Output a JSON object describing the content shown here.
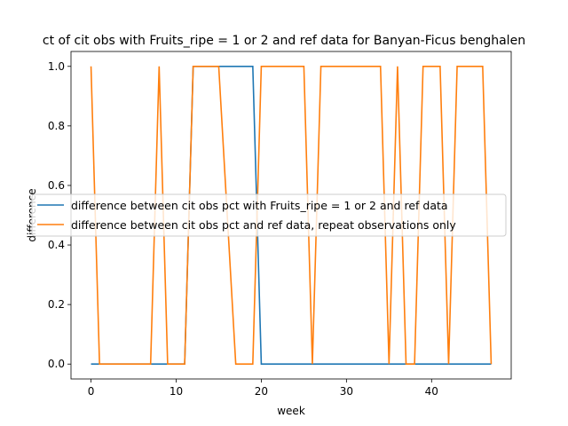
{
  "chart_data": {
    "type": "line",
    "title": "ct of cit obs with Fruits_ripe = 1 or 2 and ref data for Banyan-Ficus benghalen",
    "xlabel": "week",
    "ylabel": "difference",
    "xlim": [
      -2.35,
      49.35
    ],
    "ylim": [
      -0.05,
      1.05
    ],
    "xticks": [
      0,
      10,
      20,
      30,
      40
    ],
    "yticks": [
      0.0,
      0.2,
      0.4,
      0.6,
      0.8,
      1.0
    ],
    "xtick_labels": [
      "0",
      "10",
      "20",
      "30",
      "40"
    ],
    "ytick_labels": [
      "0.0",
      "0.2",
      "0.4",
      "0.6",
      "0.8",
      "1.0"
    ],
    "legend_position": "center",
    "grid": false,
    "series": [
      {
        "name": "difference between cit obs pct with Fruits_ripe = 1 or 2 and ref data",
        "color": "#1f77b4",
        "x": [
          0,
          1,
          2,
          3,
          4,
          5,
          6,
          7,
          8,
          9,
          10,
          11,
          12,
          13,
          14,
          15,
          16,
          17,
          18,
          19,
          20,
          21,
          22,
          23,
          24,
          25,
          26,
          27,
          28,
          29,
          30,
          31,
          32,
          33,
          34,
          35,
          36,
          37,
          38,
          39,
          40,
          41,
          42,
          43,
          44,
          45,
          46,
          47
        ],
        "y": [
          0,
          0,
          0,
          0,
          0,
          0,
          0,
          0,
          0,
          0,
          0,
          0,
          1,
          1,
          1,
          1,
          1,
          1,
          1,
          1,
          0,
          0,
          0,
          0,
          0,
          0,
          0,
          0,
          0,
          0,
          0,
          0,
          0,
          0,
          0,
          0,
          0,
          0,
          0,
          0,
          0,
          0,
          0,
          0,
          0,
          0,
          0,
          0
        ]
      },
      {
        "name": "difference between cit obs pct and ref data, repeat observations only",
        "color": "#ff7f0e",
        "x": [
          0,
          1,
          2,
          3,
          4,
          5,
          6,
          7,
          8,
          9,
          10,
          11,
          12,
          13,
          14,
          15,
          16,
          17,
          18,
          19,
          20,
          21,
          22,
          23,
          24,
          25,
          26,
          27,
          28,
          29,
          30,
          31,
          32,
          33,
          34,
          35,
          36,
          37,
          38,
          39,
          40,
          41,
          42,
          43,
          44,
          45,
          46,
          47
        ],
        "y": [
          1,
          0,
          0,
          0,
          0,
          0,
          0,
          0,
          1,
          0,
          0,
          0,
          1,
          1,
          1,
          1,
          0.5,
          0,
          0,
          0,
          1,
          1,
          1,
          1,
          1,
          1,
          0,
          1,
          1,
          1,
          1,
          1,
          1,
          1,
          1,
          0,
          1,
          0,
          0,
          1,
          1,
          1,
          0,
          1,
          1,
          1,
          1,
          0
        ]
      }
    ]
  }
}
